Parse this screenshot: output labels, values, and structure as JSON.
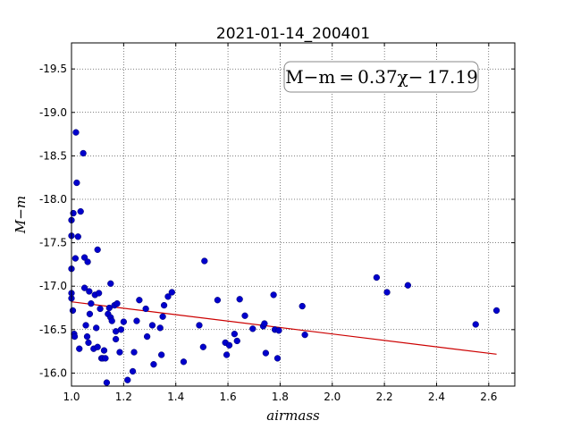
{
  "chart_data": {
    "type": "scatter",
    "title": "2021-01-14_200401",
    "xlabel": "airmass",
    "ylabel": "M−m",
    "xlim": [
      1.0,
      2.7
    ],
    "ylim": [
      -19.8,
      -15.85
    ],
    "y_inverted": true,
    "grid": true,
    "x_ticks": [
      "1.0",
      "1.2",
      "1.4",
      "1.6",
      "1.8",
      "2.0",
      "2.2",
      "2.4",
      "2.6"
    ],
    "y_ticks": [
      "-16.0",
      "-16.5",
      "-17.0",
      "-17.5",
      "-18.0",
      "-18.5",
      "-19.0",
      "-19.5"
    ],
    "point_color": "#0000cc",
    "fit_color": "#cc0000",
    "fit": {
      "slope": 0.37,
      "intercept": -17.19,
      "x_range": [
        1.0,
        2.63
      ]
    },
    "annotation": "M−m = 0.37χ− 17.19",
    "annotation_position": "top-right",
    "points": [
      [
        1.0,
        -16.86
      ],
      [
        1.0,
        -16.92
      ],
      [
        1.0,
        -17.2
      ],
      [
        1.0,
        -17.58
      ],
      [
        1.0,
        -17.76
      ],
      [
        1.005,
        -16.72
      ],
      [
        1.007,
        -17.84
      ],
      [
        1.01,
        -16.45
      ],
      [
        1.012,
        -16.42
      ],
      [
        1.015,
        -17.32
      ],
      [
        1.017,
        -18.77
      ],
      [
        1.02,
        -18.19
      ],
      [
        1.025,
        -17.57
      ],
      [
        1.03,
        -16.28
      ],
      [
        1.035,
        -17.86
      ],
      [
        1.045,
        -18.53
      ],
      [
        1.05,
        -16.98
      ],
      [
        1.05,
        -17.33
      ],
      [
        1.055,
        -16.55
      ],
      [
        1.06,
        -16.42
      ],
      [
        1.062,
        -17.28
      ],
      [
        1.065,
        -16.35
      ],
      [
        1.068,
        -16.94
      ],
      [
        1.07,
        -16.68
      ],
      [
        1.075,
        -16.8
      ],
      [
        1.085,
        -16.28
      ],
      [
        1.09,
        -16.9
      ],
      [
        1.095,
        -16.52
      ],
      [
        1.1,
        -16.3
      ],
      [
        1.1,
        -17.42
      ],
      [
        1.105,
        -16.92
      ],
      [
        1.11,
        -16.74
      ],
      [
        1.115,
        -16.17
      ],
      [
        1.12,
        -16.17
      ],
      [
        1.125,
        -16.26
      ],
      [
        1.13,
        -16.17
      ],
      [
        1.135,
        -15.89
      ],
      [
        1.14,
        -16.68
      ],
      [
        1.145,
        -16.75
      ],
      [
        1.15,
        -16.64
      ],
      [
        1.15,
        -17.03
      ],
      [
        1.155,
        -16.6
      ],
      [
        1.165,
        -16.78
      ],
      [
        1.17,
        -16.48
      ],
      [
        1.17,
        -16.39
      ],
      [
        1.175,
        -16.8
      ],
      [
        1.185,
        -16.24
      ],
      [
        1.19,
        -16.5
      ],
      [
        1.2,
        -16.59
      ],
      [
        1.215,
        -15.92
      ],
      [
        1.235,
        -16.02
      ],
      [
        1.24,
        -16.24
      ],
      [
        1.25,
        -16.6
      ],
      [
        1.26,
        -16.84
      ],
      [
        1.285,
        -16.74
      ],
      [
        1.29,
        -16.42
      ],
      [
        1.31,
        -16.55
      ],
      [
        1.315,
        -16.1
      ],
      [
        1.34,
        -16.52
      ],
      [
        1.345,
        -16.21
      ],
      [
        1.35,
        -16.65
      ],
      [
        1.355,
        -16.78
      ],
      [
        1.37,
        -16.88
      ],
      [
        1.385,
        -16.93
      ],
      [
        1.43,
        -16.13
      ],
      [
        1.49,
        -16.55
      ],
      [
        1.505,
        -16.3
      ],
      [
        1.51,
        -17.29
      ],
      [
        1.56,
        -16.84
      ],
      [
        1.59,
        -16.35
      ],
      [
        1.595,
        -16.21
      ],
      [
        1.605,
        -16.32
      ],
      [
        1.625,
        -16.45
      ],
      [
        1.635,
        -16.37
      ],
      [
        1.645,
        -16.85
      ],
      [
        1.665,
        -16.66
      ],
      [
        1.695,
        -16.51
      ],
      [
        1.735,
        -16.54
      ],
      [
        1.74,
        -16.57
      ],
      [
        1.745,
        -16.23
      ],
      [
        1.775,
        -16.9
      ],
      [
        1.78,
        -16.5
      ],
      [
        1.79,
        -16.17
      ],
      [
        1.795,
        -16.49
      ],
      [
        1.885,
        -16.77
      ],
      [
        1.895,
        -16.44
      ],
      [
        2.17,
        -17.1
      ],
      [
        2.21,
        -16.93
      ],
      [
        2.29,
        -17.01
      ],
      [
        2.55,
        -16.56
      ],
      [
        2.63,
        -16.72
      ]
    ]
  }
}
